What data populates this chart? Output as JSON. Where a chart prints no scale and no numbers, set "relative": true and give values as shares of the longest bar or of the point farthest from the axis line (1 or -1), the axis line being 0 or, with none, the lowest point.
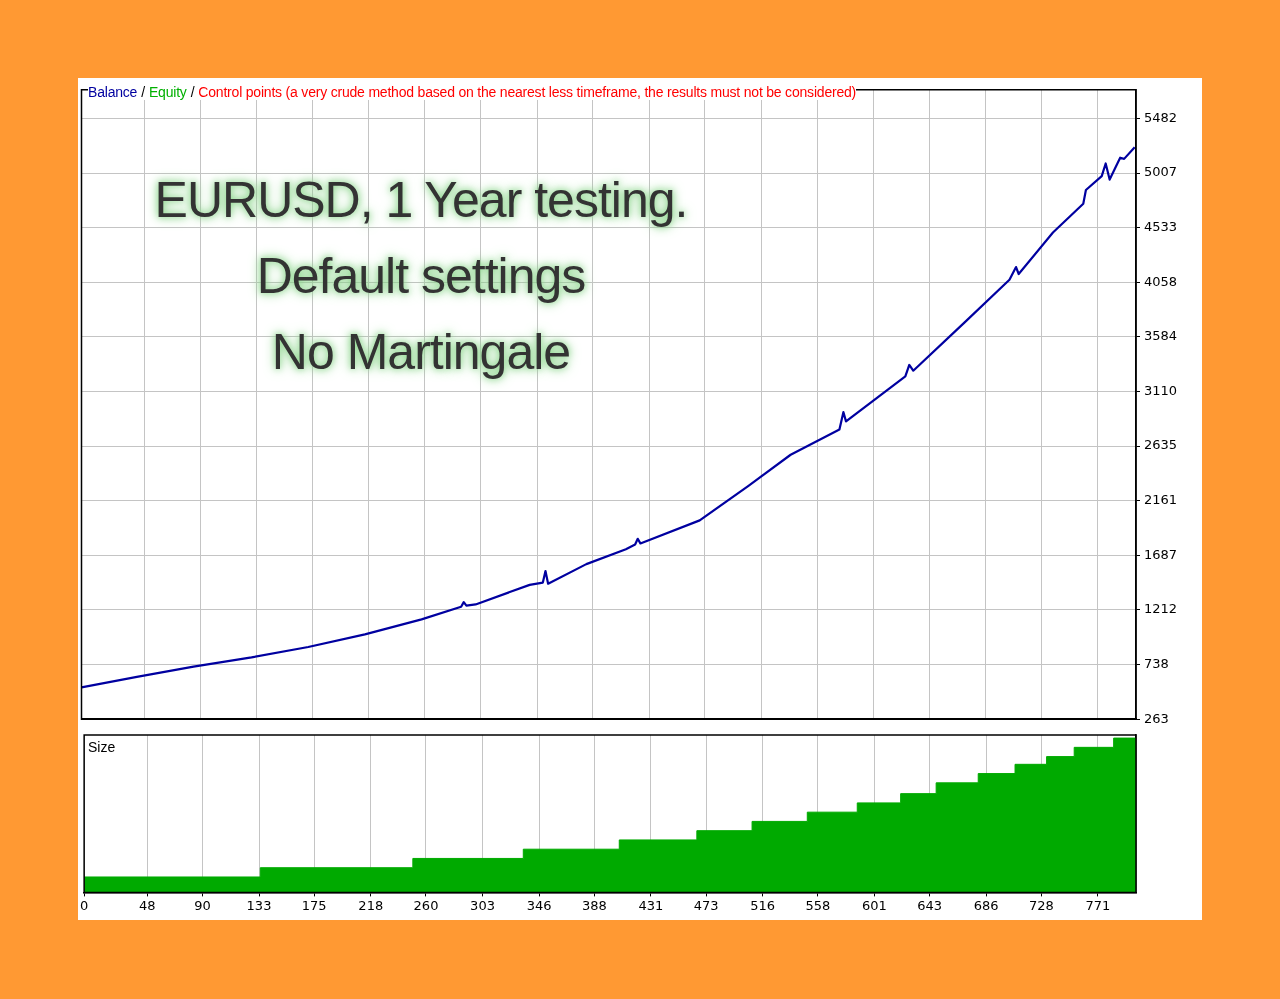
{
  "chart_data": [
    {
      "type": "line",
      "annotations": [
        "/",
        "/",
        "Control points (a very crude method based on the nearest less timeframe, the results must not be considered)",
        "EURUSD, 1 Year testing.",
        "Default settings",
        "No Martingale"
      ],
      "x": [
        0,
        42,
        85,
        129,
        172,
        215,
        258,
        288,
        290,
        292,
        299,
        340,
        350,
        352,
        354,
        383,
        413,
        420,
        422,
        424,
        469,
        506,
        538,
        575,
        578,
        580,
        625,
        628,
        631,
        670,
        704,
        709,
        711,
        737,
        760,
        762,
        774,
        777,
        780,
        788,
        791,
        799
      ],
      "series": [
        {
          "name": "Balance",
          "color": "#0000a0",
          "values": [
            540,
            630,
            720,
            800,
            890,
            1000,
            1130,
            1240,
            1280,
            1250,
            1260,
            1430,
            1450,
            1550,
            1440,
            1610,
            1740,
            1780,
            1830,
            1790,
            1990,
            2290,
            2560,
            2780,
            2930,
            2850,
            3240,
            3340,
            3290,
            3710,
            4080,
            4190,
            4130,
            4490,
            4740,
            4860,
            4980,
            5090,
            4950,
            5140,
            5130,
            5230
          ]
        },
        {
          "name": "Equity",
          "color": "#00b000",
          "values": [
            null,
            null,
            null,
            null,
            null,
            null,
            null,
            null,
            null,
            null,
            null,
            null,
            null,
            null,
            null,
            null,
            null,
            null,
            null,
            null,
            null,
            null,
            null,
            null,
            null,
            null,
            null,
            null,
            null,
            null,
            null,
            null,
            null,
            null,
            null,
            null,
            null,
            null,
            null,
            null,
            null,
            null
          ]
        }
      ],
      "xlim": [
        0,
        800
      ],
      "xticks": [
        0,
        48,
        90,
        133,
        175,
        218,
        260,
        303,
        346,
        388,
        431,
        473,
        516,
        558,
        601,
        643,
        686,
        728,
        771
      ],
      "ylim": [
        263,
        5730
      ],
      "yticks": [
        263,
        738,
        1212,
        1687,
        2161,
        2635,
        3110,
        3584,
        4058,
        4533,
        5007,
        5482
      ],
      "grid": true,
      "legend": "top left",
      "tick_labels": "y"
    },
    {
      "type": "area",
      "title": "Size",
      "relative": true,
      "x": [
        0,
        134,
        134,
        250,
        250,
        334,
        334,
        407,
        407,
        466,
        466,
        508,
        508,
        550,
        550,
        588,
        588,
        621,
        621,
        648,
        648,
        680,
        680,
        708,
        708,
        732,
        732,
        753,
        753,
        783,
        783,
        800
      ],
      "values": [
        0.1,
        0.1,
        0.16,
        0.16,
        0.22,
        0.22,
        0.28,
        0.28,
        0.34,
        0.34,
        0.4,
        0.4,
        0.46,
        0.46,
        0.52,
        0.52,
        0.58,
        0.58,
        0.64,
        0.64,
        0.71,
        0.71,
        0.77,
        0.77,
        0.83,
        0.83,
        0.88,
        0.88,
        0.94,
        0.94,
        1,
        1
      ],
      "color": "#00aa00",
      "xlim": [
        0,
        800
      ],
      "xticks": [
        0,
        48,
        90,
        133,
        175,
        218,
        260,
        303,
        346,
        388,
        431,
        473,
        516,
        558,
        601,
        643,
        686,
        728,
        771
      ],
      "grid": "x",
      "tick_labels": "x"
    }
  ]
}
